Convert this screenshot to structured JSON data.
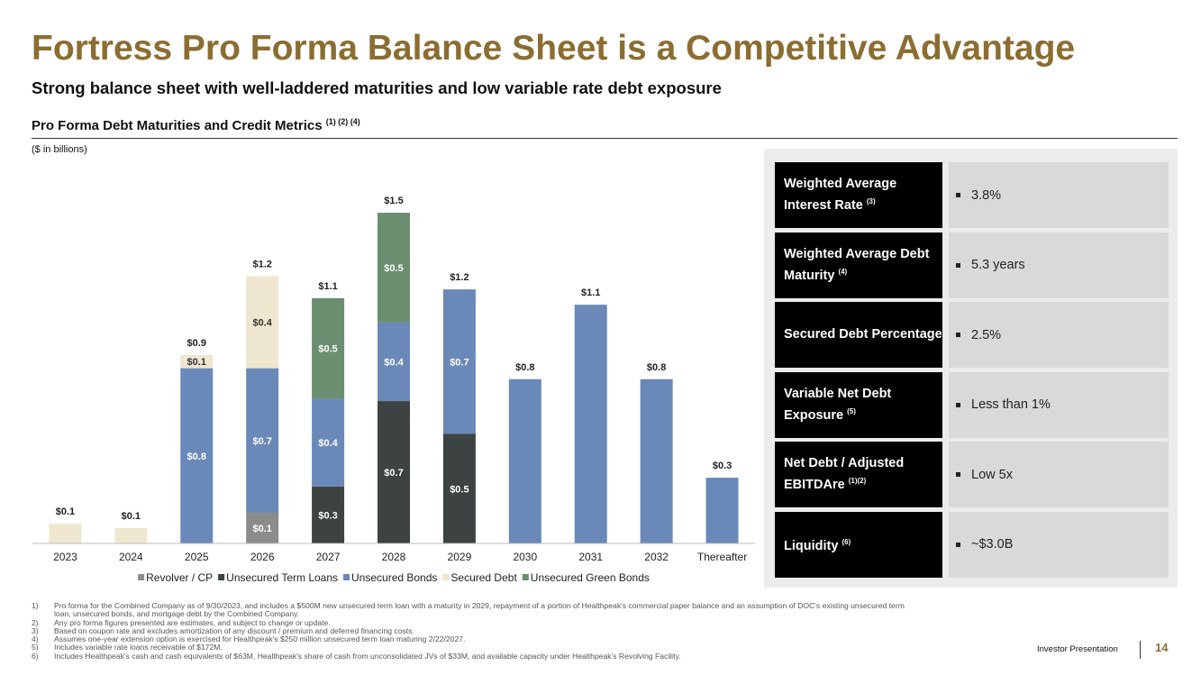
{
  "header": {
    "title": "Fortress Pro Forma Balance Sheet is a Competitive Advantage",
    "subtitle": "Strong balance sheet with well-laddered maturities and low variable rate debt exposure",
    "section": "Pro Forma Debt Maturities and Credit Metrics",
    "section_notes": "(1) (2) (4)",
    "units": "($ in billions)"
  },
  "chart_data": {
    "type": "stacked_bar",
    "categories": [
      "2023",
      "2024",
      "2025",
      "2026",
      "2027",
      "2028",
      "2029",
      "2030",
      "2031",
      "2032",
      "Thereafter"
    ],
    "ylim": [
      0,
      1.5
    ],
    "series": [
      {
        "name": "Revolver / CP",
        "color": "#8c8c8c",
        "values": [
          0,
          0,
          0,
          0.14,
          0,
          0,
          0,
          0,
          0,
          0,
          0
        ],
        "value_labels": [
          null,
          null,
          null,
          "$0.1",
          null,
          null,
          null,
          null,
          null,
          null,
          null
        ]
      },
      {
        "name": "Unsecured Term Loans",
        "color": "#3d4343",
        "values": [
          0,
          0,
          0,
          0,
          0.26,
          0.65,
          0.5,
          0,
          0,
          0,
          0
        ],
        "value_labels": [
          null,
          null,
          null,
          null,
          "$0.3",
          "$0.7",
          "$0.5",
          null,
          null,
          null,
          null
        ]
      },
      {
        "name": "Unsecured Bonds",
        "color": "#6a89b8",
        "values": [
          0,
          0,
          0.8,
          0.66,
          0.4,
          0.36,
          0.66,
          0.75,
          1.09,
          0.75,
          0.3
        ],
        "value_labels": [
          null,
          null,
          "$0.8",
          "$0.7",
          "$0.4",
          "$0.4",
          "$0.7",
          null,
          null,
          null,
          null
        ]
      },
      {
        "name": "Secured Debt",
        "color": "#efe6cf",
        "values": [
          0.09,
          0.07,
          0.06,
          0.42,
          0,
          0,
          0,
          0,
          0,
          0,
          0
        ],
        "value_labels": [
          null,
          null,
          "$0.1",
          "$0.4",
          null,
          null,
          null,
          null,
          null,
          null,
          null
        ]
      },
      {
        "name": "Unsecured Green Bonds",
        "color": "#6b8e71",
        "values": [
          0,
          0,
          0,
          0,
          0.46,
          0.5,
          0,
          0,
          0,
          0,
          0
        ],
        "value_labels": [
          null,
          null,
          null,
          null,
          "$0.5",
          "$0.5",
          null,
          null,
          null,
          null,
          null
        ]
      }
    ],
    "totals": [
      0.09,
      0.07,
      0.86,
      1.22,
      1.12,
      1.51,
      1.16,
      0.75,
      1.09,
      0.75,
      0.3
    ],
    "total_labels": [
      "$0.1",
      "$0.1",
      "$0.9",
      "$1.2",
      "$1.1",
      "$1.5",
      "$1.2",
      "$0.8",
      "$1.1",
      "$0.8",
      "$0.3"
    ]
  },
  "metrics": [
    {
      "label": "Weighted Average Interest Rate",
      "note": "(3)",
      "value": "3.8%"
    },
    {
      "label": "Weighted Average Debt Maturity",
      "note": "(4)",
      "value": "5.3 years"
    },
    {
      "label": "Secured Debt Percentage",
      "note": null,
      "value": "2.5%"
    },
    {
      "label": "Variable Net Debt Exposure",
      "note": "(5)",
      "value": "Less than 1%"
    },
    {
      "label": "Net Debt / Adjusted EBITDAre",
      "note": "(1)(2)",
      "value": "Low 5x"
    },
    {
      "label": "Liquidity",
      "note": "(6)",
      "value": "~$3.0B"
    }
  ],
  "footnotes": [
    {
      "num": "1)",
      "text": "Pro forma for the Combined Company as of 9/30/2023, and includes a $500M new unsecured term loan with a maturity in 2029, repayment of a portion of Healthpeak's commercial paper balance and an assumption of DOC's existing unsecured term loan, unsecured bonds, and mortgage debt by the Combined Company."
    },
    {
      "num": "2)",
      "text": "Any pro forma figures presented are estimates, and subject to change or update."
    },
    {
      "num": "3)",
      "text": "Based on coupon rate and excludes amortization of any discount / premium and deferred financing costs."
    },
    {
      "num": "4)",
      "text": "Assumes one-year extension option is exercised for Healthpeak's $250 million unsecured term loan maturing 2/22/2027."
    },
    {
      "num": "5)",
      "text": "Includes variable rate loans receivable of $172M."
    },
    {
      "num": "6)",
      "text": "Includes Healthpeak's cash and cash equivalents of $63M, Healthpeak's share of cash from unconsolidated JVs of $33M, and available capacity under Healthpeak's Revolving Facility."
    }
  ],
  "footer": {
    "label": "Investor Presentation",
    "page": "14"
  }
}
